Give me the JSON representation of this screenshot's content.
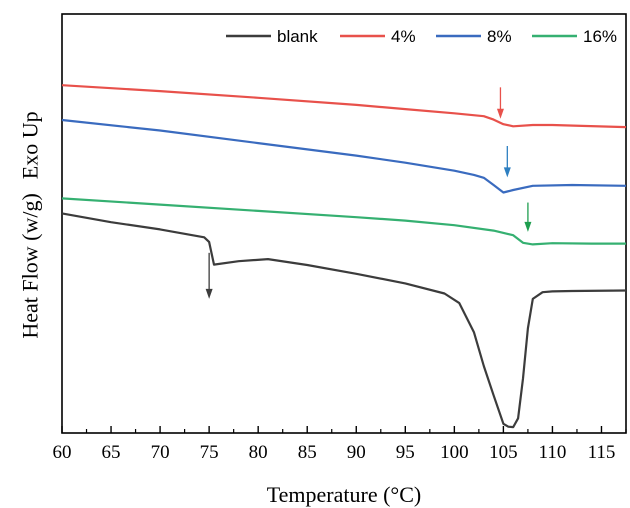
{
  "chart_data": {
    "type": "line",
    "xlabel": "Temperature (°C)",
    "ylabel": "Heat Flow (w/g)",
    "ylabel_annotation": "Exo Up",
    "xlim": [
      60,
      117.5
    ],
    "ylim": [
      0,
      100
    ],
    "xticks": [
      "60",
      "65",
      "70",
      "75",
      "80",
      "85",
      "90",
      "95",
      "100",
      "105",
      "110",
      "115"
    ],
    "y_axis_values_shown": false,
    "legend_position": "top-right",
    "series": [
      {
        "name": "blank",
        "color": "#3c3c3c",
        "x": [
          60,
          65,
          70,
          74.5,
          75,
          75.5,
          78,
          81,
          85,
          90,
          95,
          99,
          100.5,
          102,
          103,
          104,
          105,
          105.5,
          106,
          106.5,
          107,
          107.5,
          108,
          109,
          110,
          112,
          117.5
        ],
        "y": [
          52.4,
          50.3,
          48.6,
          46.7,
          45.6,
          40.2,
          41.0,
          41.5,
          40.1,
          38.0,
          35.7,
          33.3,
          31.0,
          24.0,
          16.0,
          9.0,
          2.2,
          1.5,
          1.4,
          3.5,
          13.0,
          25.0,
          32.0,
          33.6,
          33.8,
          33.9,
          34.0
        ]
      },
      {
        "name": "4%",
        "color": "#e8514b",
        "x": [
          60,
          70,
          80,
          90,
          95,
          100,
          103,
          104,
          105,
          106,
          108,
          110,
          113,
          117.5
        ],
        "y": [
          83.0,
          81.6,
          80.0,
          78.3,
          77.3,
          76.3,
          75.6,
          74.8,
          73.7,
          73.2,
          73.5,
          73.5,
          73.3,
          73.0
        ]
      },
      {
        "name": "8%",
        "color": "#3a6bbf",
        "x": [
          60,
          70,
          80,
          90,
          95,
          100,
          102,
          103,
          104,
          105,
          106,
          108,
          112,
          117.5
        ],
        "y": [
          74.7,
          72.2,
          69.2,
          66.2,
          64.5,
          62.6,
          61.6,
          60.9,
          59.2,
          57.4,
          58.0,
          59.0,
          59.2,
          59.0
        ]
      },
      {
        "name": "16%",
        "color": "#35b071",
        "x": [
          60,
          70,
          80,
          90,
          95,
          100,
          104,
          106,
          107,
          108,
          110,
          114,
          117.5
        ],
        "y": [
          56.0,
          54.5,
          53.0,
          51.5,
          50.7,
          49.6,
          48.3,
          47.2,
          45.4,
          45.0,
          45.3,
          45.2,
          45.2
        ]
      }
    ],
    "annotations": [
      {
        "type": "arrow",
        "x": 75,
        "y_from": 43.0,
        "y_to": 32.0,
        "color": "#3c3c3c"
      },
      {
        "type": "arrow",
        "x": 104.7,
        "y_from": 82.5,
        "y_to": 75.0,
        "color": "#e8514b"
      },
      {
        "type": "arrow",
        "x": 105.4,
        "y_from": 68.5,
        "y_to": 61.0,
        "color": "#2d7fc1"
      },
      {
        "type": "arrow",
        "x": 107.5,
        "y_from": 55.0,
        "y_to": 48.0,
        "color": "#1f9e4f"
      }
    ]
  }
}
